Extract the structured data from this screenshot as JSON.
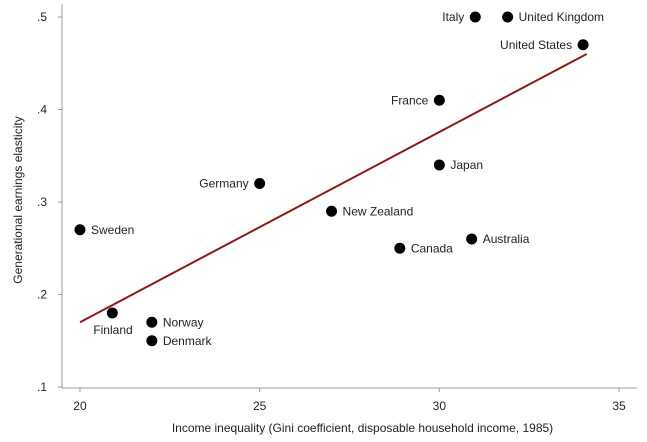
{
  "chart_data": {
    "type": "scatter",
    "title": "",
    "xlabel": "Income inequality (Gini coefficient, disposable household income, 1985)",
    "ylabel": "Generational earnings elasticity",
    "xlim": [
      19.5,
      35.5
    ],
    "ylim": [
      0.1,
      0.5
    ],
    "x_ticks": [
      {
        "value": 20,
        "label": "20"
      },
      {
        "value": 25,
        "label": "25"
      },
      {
        "value": 30,
        "label": "30"
      },
      {
        "value": 35,
        "label": "35"
      }
    ],
    "y_ticks": [
      {
        "value": 0.1,
        "label": ".1"
      },
      {
        "value": 0.2,
        "label": ".2"
      },
      {
        "value": 0.3,
        "label": ".3"
      },
      {
        "value": 0.4,
        "label": ".4"
      },
      {
        "value": 0.5,
        "label": ".5"
      }
    ],
    "grid": false,
    "point_color": "#000000",
    "trend_color": "#8b1a1a",
    "axis_color": "#999999",
    "points": [
      {
        "label": "Italy",
        "x": 31.0,
        "y": 0.5,
        "label_side": "left"
      },
      {
        "label": "United Kingdom",
        "x": 31.9,
        "y": 0.5,
        "label_side": "right"
      },
      {
        "label": "United States",
        "x": 34.0,
        "y": 0.47,
        "label_side": "left"
      },
      {
        "label": "France",
        "x": 30.0,
        "y": 0.41,
        "label_side": "left"
      },
      {
        "label": "Japan",
        "x": 30.0,
        "y": 0.34,
        "label_side": "right"
      },
      {
        "label": "Germany",
        "x": 25.0,
        "y": 0.32,
        "label_side": "left"
      },
      {
        "label": "New Zealand",
        "x": 27.0,
        "y": 0.29,
        "label_side": "right"
      },
      {
        "label": "Sweden",
        "x": 20.0,
        "y": 0.27,
        "label_side": "right"
      },
      {
        "label": "Australia",
        "x": 30.9,
        "y": 0.26,
        "label_side": "right"
      },
      {
        "label": "Canada",
        "x": 28.9,
        "y": 0.25,
        "label_side": "right"
      },
      {
        "label": "Finland",
        "x": 20.9,
        "y": 0.18,
        "label_side": "below-left"
      },
      {
        "label": "Norway",
        "x": 22.0,
        "y": 0.17,
        "label_side": "right"
      },
      {
        "label": "Denmark",
        "x": 22.0,
        "y": 0.15,
        "label_side": "right"
      }
    ],
    "trend_line": {
      "x": [
        20.0,
        34.1
      ],
      "y": [
        0.17,
        0.46
      ]
    }
  }
}
